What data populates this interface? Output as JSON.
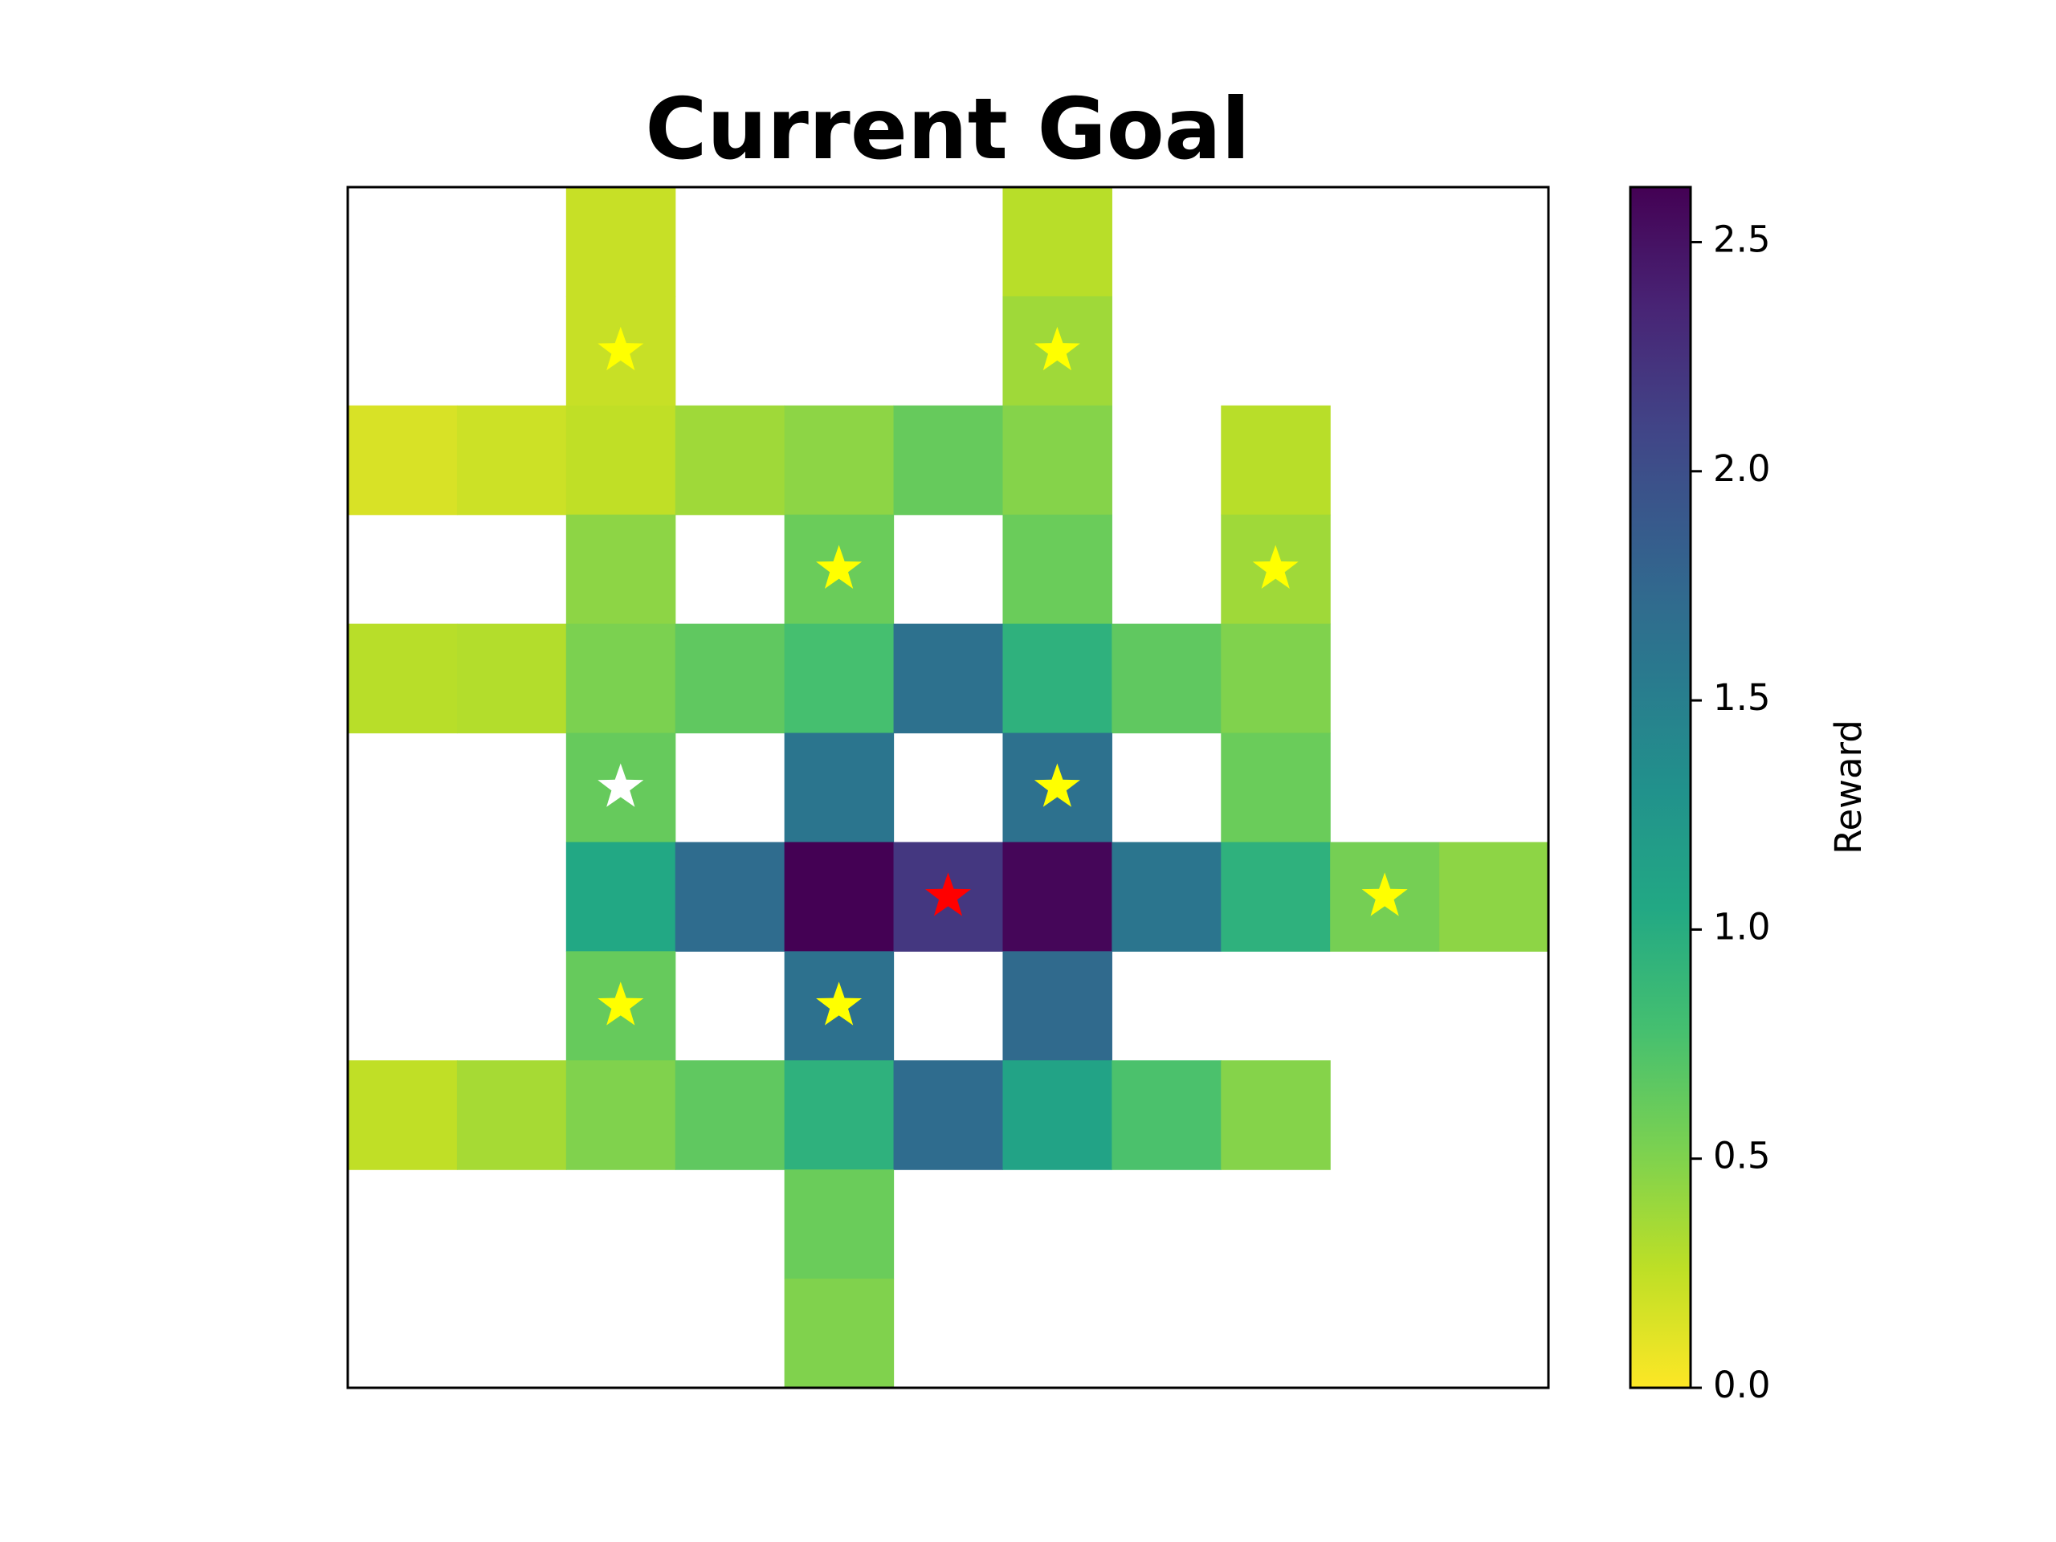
{
  "chart_data": {
    "type": "heatmap",
    "title": "Current Goal",
    "grid_size": [
      11,
      11
    ],
    "cells": [
      [
        0,
        2,
        0.22
      ],
      [
        0,
        6,
        0.28
      ],
      [
        1,
        2,
        0.22
      ],
      [
        1,
        6,
        0.38
      ],
      [
        2,
        0,
        0.15
      ],
      [
        2,
        1,
        0.2
      ],
      [
        2,
        2,
        0.25
      ],
      [
        2,
        3,
        0.38
      ],
      [
        2,
        4,
        0.45
      ],
      [
        2,
        5,
        0.62
      ],
      [
        2,
        6,
        0.48
      ],
      [
        2,
        8,
        0.28
      ],
      [
        3,
        2,
        0.45
      ],
      [
        3,
        4,
        0.6
      ],
      [
        3,
        6,
        0.6
      ],
      [
        3,
        8,
        0.38
      ],
      [
        4,
        0,
        0.28
      ],
      [
        4,
        1,
        0.3
      ],
      [
        4,
        2,
        0.52
      ],
      [
        4,
        3,
        0.65
      ],
      [
        4,
        4,
        0.78
      ],
      [
        4,
        5,
        1.65
      ],
      [
        4,
        6,
        0.95
      ],
      [
        4,
        7,
        0.65
      ],
      [
        4,
        8,
        0.5
      ],
      [
        5,
        2,
        0.62
      ],
      [
        5,
        4,
        1.6
      ],
      [
        5,
        6,
        1.65
      ],
      [
        5,
        8,
        0.6
      ],
      [
        6,
        2,
        1.05
      ],
      [
        6,
        3,
        1.7
      ],
      [
        6,
        4,
        2.62
      ],
      [
        6,
        5,
        2.2
      ],
      [
        6,
        6,
        2.58
      ],
      [
        6,
        7,
        1.6
      ],
      [
        6,
        8,
        0.95
      ],
      [
        6,
        9,
        0.55
      ],
      [
        6,
        10,
        0.45
      ],
      [
        7,
        2,
        0.62
      ],
      [
        7,
        4,
        1.65
      ],
      [
        7,
        6,
        1.72
      ],
      [
        8,
        0,
        0.25
      ],
      [
        8,
        1,
        0.35
      ],
      [
        8,
        2,
        0.5
      ],
      [
        8,
        3,
        0.65
      ],
      [
        8,
        4,
        0.95
      ],
      [
        8,
        5,
        1.7
      ],
      [
        8,
        6,
        1.1
      ],
      [
        8,
        7,
        0.75
      ],
      [
        8,
        8,
        0.48
      ],
      [
        9,
        4,
        0.6
      ],
      [
        10,
        4,
        0.5
      ]
    ],
    "markers": [
      {
        "row": 1,
        "col": 2,
        "color": "#ffff00"
      },
      {
        "row": 1,
        "col": 6,
        "color": "#ffff00"
      },
      {
        "row": 3,
        "col": 4,
        "color": "#ffff00"
      },
      {
        "row": 3,
        "col": 8,
        "color": "#ffff00"
      },
      {
        "row": 5,
        "col": 2,
        "color": "#ffffff"
      },
      {
        "row": 5,
        "col": 6,
        "color": "#ffff00"
      },
      {
        "row": 6,
        "col": 5,
        "color": "#ff0000"
      },
      {
        "row": 6,
        "col": 9,
        "color": "#ffff00"
      },
      {
        "row": 7,
        "col": 2,
        "color": "#ffff00"
      },
      {
        "row": 7,
        "col": 4,
        "color": "#ffff00"
      }
    ],
    "colormap": "viridis_r",
    "colorbar": {
      "label": "Reward",
      "range": [
        0,
        2.62
      ],
      "ticks": [
        0.0,
        0.5,
        1.0,
        1.5,
        2.0,
        2.5
      ],
      "tick_labels": [
        "0.0",
        "0.5",
        "1.0",
        "1.5",
        "2.0",
        "2.5"
      ]
    },
    "xticks": false,
    "yticks": false
  }
}
